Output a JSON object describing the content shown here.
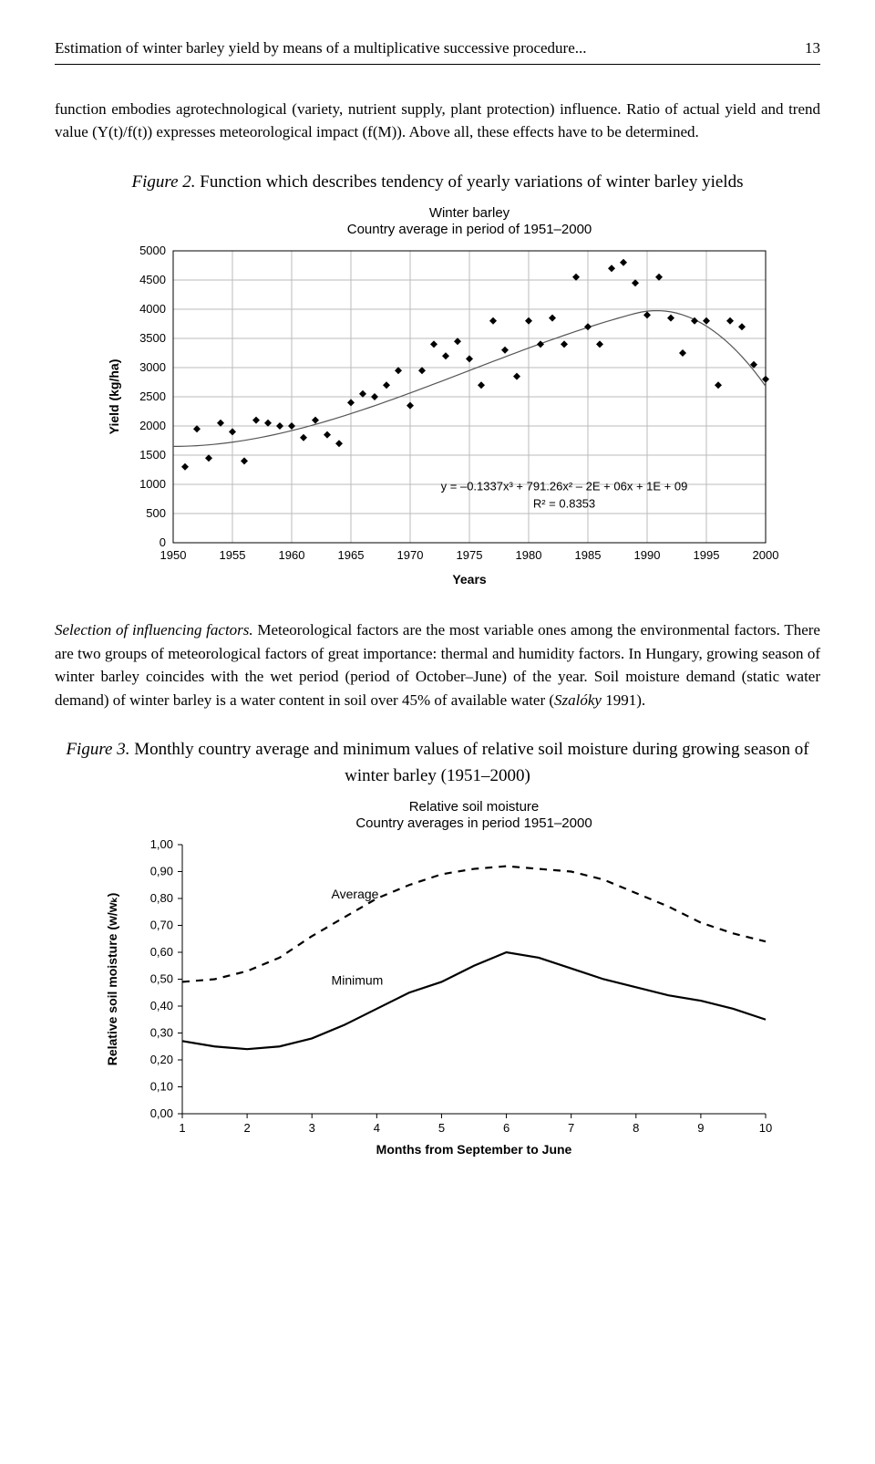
{
  "header": {
    "running_title": "Estimation of winter barley yield by means of a multiplicative successive procedure...",
    "page_number": "13"
  },
  "para1": "function embodies agrotechnological (variety, nutrient supply, plant protection) influence. Ratio of actual yield and trend value (Y(t)/f(t)) expresses meteorological impact (f(M)). Above all, these effects have to be determined.",
  "figure2": {
    "caption_prefix": "Figure 2.",
    "caption_rest": " Function which describes tendency of yearly variations of winter barley yields",
    "chart": {
      "type": "scatter_with_curve",
      "title_line1": "Winter barley",
      "title_line2": "Country average in period of 1951–2000",
      "xlabel": "Years",
      "ylabel": "Yield (kg/ha)",
      "xlim": [
        1950,
        2000
      ],
      "ylim": [
        0,
        5000
      ],
      "xtick_step": 5,
      "ytick_step": 500,
      "grid_color": "#bbbbbb",
      "background_color": "#ffffff",
      "marker_color": "#000000",
      "marker_size": 4,
      "curve_color": "#555555",
      "curve_width": 1.2,
      "equation_line1": "y = –0.1337x³ + 791.26x² – 2E + 06x + 1E + 09",
      "equation_line2": "R² = 0.8353",
      "scatter": [
        [
          1951,
          1300
        ],
        [
          1952,
          1950
        ],
        [
          1953,
          1450
        ],
        [
          1954,
          2050
        ],
        [
          1955,
          1900
        ],
        [
          1956,
          1400
        ],
        [
          1957,
          2100
        ],
        [
          1958,
          2050
        ],
        [
          1959,
          2000
        ],
        [
          1960,
          2000
        ],
        [
          1961,
          1800
        ],
        [
          1962,
          2100
        ],
        [
          1963,
          1850
        ],
        [
          1964,
          1700
        ],
        [
          1965,
          2400
        ],
        [
          1966,
          2550
        ],
        [
          1967,
          2500
        ],
        [
          1968,
          2700
        ],
        [
          1969,
          2950
        ],
        [
          1970,
          2350
        ],
        [
          1971,
          2950
        ],
        [
          1972,
          3400
        ],
        [
          1973,
          3200
        ],
        [
          1974,
          3450
        ],
        [
          1975,
          3150
        ],
        [
          1976,
          2700
        ],
        [
          1977,
          3800
        ],
        [
          1978,
          3300
        ],
        [
          1979,
          2850
        ],
        [
          1980,
          3800
        ],
        [
          1981,
          3400
        ],
        [
          1982,
          3850
        ],
        [
          1983,
          3400
        ],
        [
          1984,
          4550
        ],
        [
          1985,
          3700
        ],
        [
          1986,
          3400
        ],
        [
          1987,
          4700
        ],
        [
          1988,
          4800
        ],
        [
          1989,
          4450
        ],
        [
          1990,
          3900
        ],
        [
          1991,
          4550
        ],
        [
          1992,
          3850
        ],
        [
          1993,
          3250
        ],
        [
          1994,
          3800
        ],
        [
          1995,
          3800
        ],
        [
          1996,
          2700
        ],
        [
          1997,
          3800
        ],
        [
          1998,
          3700
        ],
        [
          1999,
          3050
        ],
        [
          2000,
          2800
        ]
      ]
    }
  },
  "para2_lead_italic": "Selection of influencing factors.",
  "para2_rest": " Meteorological factors are the most variable ones among the environmental factors. There are two groups of meteorological factors of great importance: thermal and humidity factors. In Hungary, growing season of winter barley coincides with the wet period (period of October–June) of the year. Soil moisture demand (static water demand) of winter barley is a water content in soil over 45% of available water (",
  "para2_ital2": "Szalóky",
  "para2_tail": " 1991).",
  "figure3": {
    "caption_prefix": "Figure 3.",
    "caption_rest": " Monthly country average and minimum values of relative soil moisture during growing season of winter barley (1951–2000)",
    "chart": {
      "type": "line",
      "title_line1": "Relative soil moisture",
      "title_line2": "Country averages in period 1951–2000",
      "xlabel": "Months from September to June",
      "ylabel": "Relative soil moisture (w/wₖ)",
      "xlim": [
        1,
        10
      ],
      "ylim": [
        0.0,
        1.0
      ],
      "xtick_step": 1,
      "ytick_step": 0.1,
      "grid": false,
      "avg_label": "Average",
      "min_label": "Minimum",
      "avg_style": "dashed",
      "min_style": "solid",
      "avg_color": "#000000",
      "min_color": "#000000",
      "avg_width": 2.2,
      "min_width": 2.2,
      "avg": [
        [
          1,
          0.49
        ],
        [
          1.5,
          0.5
        ],
        [
          2,
          0.53
        ],
        [
          2.5,
          0.58
        ],
        [
          3,
          0.66
        ],
        [
          3.5,
          0.73
        ],
        [
          4,
          0.8
        ],
        [
          4.5,
          0.85
        ],
        [
          5,
          0.89
        ],
        [
          5.5,
          0.91
        ],
        [
          6,
          0.92
        ],
        [
          6.5,
          0.91
        ],
        [
          7,
          0.9
        ],
        [
          7.5,
          0.87
        ],
        [
          8,
          0.82
        ],
        [
          8.5,
          0.77
        ],
        [
          9,
          0.71
        ],
        [
          9.5,
          0.67
        ],
        [
          10,
          0.64
        ]
      ],
      "min": [
        [
          1,
          0.27
        ],
        [
          1.5,
          0.25
        ],
        [
          2,
          0.24
        ],
        [
          2.5,
          0.25
        ],
        [
          3,
          0.28
        ],
        [
          3.5,
          0.33
        ],
        [
          4,
          0.39
        ],
        [
          4.5,
          0.45
        ],
        [
          5,
          0.49
        ],
        [
          5.5,
          0.55
        ],
        [
          6,
          0.6
        ],
        [
          6.5,
          0.58
        ],
        [
          7,
          0.54
        ],
        [
          7.5,
          0.5
        ],
        [
          8,
          0.47
        ],
        [
          8.5,
          0.44
        ],
        [
          9,
          0.42
        ],
        [
          9.5,
          0.39
        ],
        [
          10,
          0.35
        ]
      ]
    }
  }
}
